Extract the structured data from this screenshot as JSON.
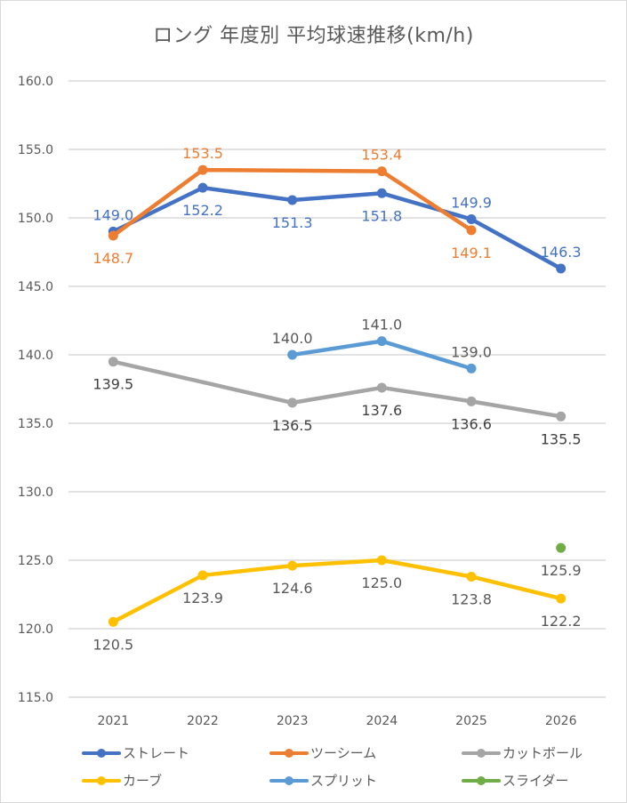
{
  "chart_data": {
    "type": "line",
    "title": "ロング 年度別 平均球速推移(km/h)",
    "xlabel": "",
    "ylabel": "",
    "categories": [
      "2021",
      "2022",
      "2023",
      "2024",
      "2025",
      "2026"
    ],
    "ylim": [
      115,
      160
    ],
    "yticks": [
      "160.0",
      "155.0",
      "150.0",
      "145.0",
      "140.0",
      "135.0",
      "130.0",
      "125.0",
      "120.0",
      "115.0"
    ],
    "ytick_values": [
      160,
      155,
      150,
      145,
      140,
      135,
      130,
      125,
      120,
      115
    ],
    "grid": true,
    "legend_position": "bottom",
    "series": [
      {
        "name": "ストレート",
        "color": "#4472c4",
        "label_color": "#4472c4",
        "values": [
          149.0,
          152.2,
          151.3,
          151.8,
          149.9,
          146.3
        ],
        "label_pos": [
          "above",
          "below",
          "below",
          "below",
          "above",
          "above"
        ]
      },
      {
        "name": "ツーシーム",
        "color": "#ed7d31",
        "label_color": "#ed7d31",
        "values": [
          148.7,
          153.5,
          null,
          153.4,
          149.1,
          null
        ],
        "label_pos": [
          "below",
          "above",
          null,
          "above",
          "below",
          null
        ],
        "connect_gaps": true
      },
      {
        "name": "カットボール",
        "color": "#a5a5a5",
        "label_color": "#404040",
        "values": [
          139.5,
          null,
          136.5,
          137.6,
          136.6,
          135.5
        ],
        "label_pos": [
          "below",
          null,
          "below",
          "below",
          "below",
          "below"
        ],
        "connect_gaps": true
      },
      {
        "name": "カーブ",
        "color": "#ffc000",
        "label_color": "#595959",
        "values": [
          120.5,
          123.9,
          124.6,
          125.0,
          123.8,
          122.2
        ],
        "label_pos": [
          "below",
          "below",
          "below",
          "below",
          "below",
          "below"
        ]
      },
      {
        "name": "スプリット",
        "color": "#5b9bd5",
        "label_color": "#595959",
        "values": [
          null,
          null,
          140.0,
          141.0,
          139.0,
          null
        ],
        "label_pos": [
          null,
          null,
          "above",
          "above",
          "above",
          null
        ]
      },
      {
        "name": "スライダー",
        "color": "#70ad47",
        "label_color": "#595959",
        "values": [
          null,
          null,
          null,
          null,
          null,
          125.9
        ],
        "label_pos": [
          null,
          null,
          null,
          null,
          null,
          "below"
        ]
      }
    ]
  }
}
